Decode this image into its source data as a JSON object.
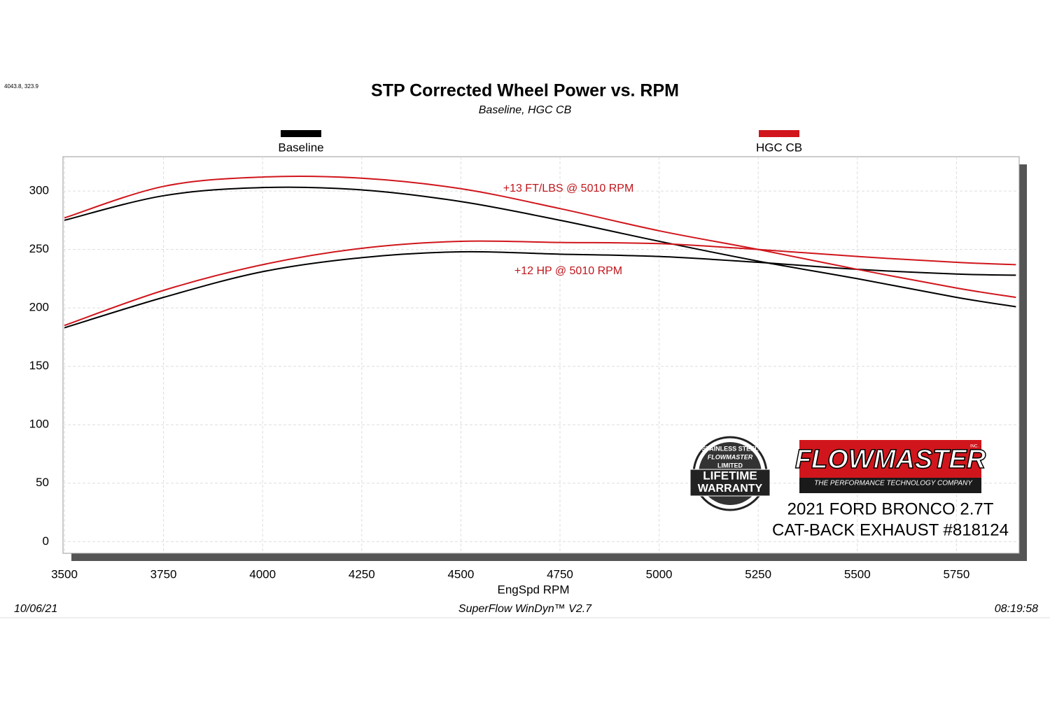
{
  "corner_readout": "4043.8, 323.9",
  "chart_data": {
    "type": "line",
    "title": "STP Corrected Wheel Power vs. RPM",
    "subtitle": "Baseline, HGC CB",
    "x_label": "EngSpd  RPM",
    "x": [
      3500,
      3750,
      4000,
      4250,
      4500,
      4750,
      5000,
      5250,
      5500,
      5750,
      5900
    ],
    "series": [
      {
        "name": "Baseline",
        "color": "#000000",
        "torque": [
          275,
          296,
          303,
          301,
          291,
          275,
          257,
          240,
          225,
          209,
          201
        ],
        "power": [
          183,
          209,
          231,
          243,
          248,
          246,
          244,
          239,
          233,
          229,
          228
        ]
      },
      {
        "name": "HGC CB",
        "color": "#d0161c",
        "torque": [
          277,
          304,
          312,
          311,
          302,
          285,
          266,
          250,
          233,
          217,
          209
        ],
        "power": [
          185,
          215,
          237,
          251,
          257,
          256,
          255,
          250,
          244,
          239,
          237
        ]
      }
    ],
    "annotations": [
      "+13 FT/LBS @ 5010 RPM",
      "+12 HP @ 5010 RPM"
    ],
    "xlim": [
      3500,
      5910
    ],
    "ylim": [
      -10,
      330
    ],
    "xticks": [
      3500,
      3750,
      4000,
      4250,
      4500,
      4750,
      5000,
      5250,
      5500,
      5750
    ],
    "yticks": [
      0,
      50,
      100,
      150,
      200,
      250,
      300
    ],
    "grid": true
  },
  "badge": {
    "top": "STAINLESS STEEL",
    "brand": "FLOWMASTER",
    "line1": "LIMITED",
    "line2": "LIFETIME",
    "line3": "WARRANTY"
  },
  "logo": {
    "brand": "FLOWMASTER",
    "inc": "INC.",
    "tagline": "THE PERFORMANCE TECHNOLOGY COMPANY"
  },
  "caption": [
    "2021 FORD BRONCO 2.7T",
    "CAT-BACK EXHAUST #818124"
  ],
  "footer": {
    "date": "10/06/21",
    "software": "SuperFlow WinDyn™ V2.7",
    "time": "08:19:58"
  }
}
